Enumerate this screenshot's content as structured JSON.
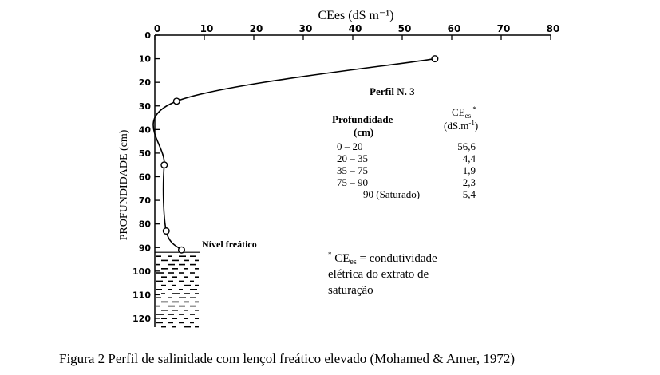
{
  "chart_data": {
    "type": "line",
    "title": "Perfil N. 3",
    "xlabel": "CEes (dS m⁻¹)",
    "ylabel": "PROFUNDIDADE (cm)",
    "xlim": [
      0,
      80
    ],
    "ylim": [
      0,
      120
    ],
    "y_inverted": true,
    "x_axis_position": "top",
    "x_ticks": [
      "0",
      "10",
      "20",
      "30",
      "40",
      "50",
      "60",
      "70",
      "80"
    ],
    "y_ticks": [
      "0",
      "10",
      "20",
      "30",
      "40",
      "50",
      "60",
      "70",
      "80",
      "90",
      "100",
      "110",
      "120"
    ],
    "series": [
      {
        "x": [
          56.6,
          4.4,
          1.9,
          2.3,
          5.4
        ],
        "y": [
          10,
          28,
          55,
          83,
          91
        ]
      }
    ],
    "water_table_label": "Nível freático",
    "water_table_depth": 91
  },
  "table": {
    "header_depth": "Profundidade",
    "header_depth_unit": "(cm)",
    "header_ce": "CE",
    "header_ce_sub": "es",
    "header_ce_sup": " *",
    "header_ce_unit": "(dS.m",
    "header_ce_unit_sup": "-1",
    "header_ce_unit_end": ")",
    "rows": [
      {
        "depth": "0 – 20",
        "ce": "56,6"
      },
      {
        "depth": "20 – 35",
        "ce": "4,4"
      },
      {
        "depth": "35 – 75",
        "ce": "1,9"
      },
      {
        "depth": "75 – 90",
        "ce": "2,3"
      },
      {
        "depth": "90 (Saturado)",
        "ce": "5,4"
      }
    ]
  },
  "footnote": {
    "star": "*",
    "ce": " CE",
    "sub": "es",
    "line1": " = condutividade",
    "line2": "elétrica do extrato de",
    "line3": "saturação"
  },
  "caption": "Figura 2 Perfil de salinidade com lençol freático elevado (Mohamed & Amer, 1972)"
}
